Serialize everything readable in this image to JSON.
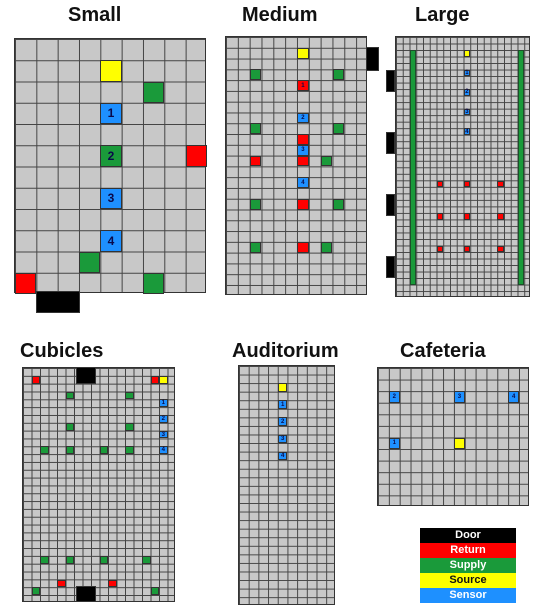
{
  "colors": {
    "door": "#000000",
    "return": "#ff0000",
    "supply": "#1a9a3a",
    "source": "#ffff00",
    "sensor": "#1e90ff"
  },
  "labels": {
    "small": "Small",
    "medium": "Medium",
    "large": "Large",
    "cubicles": "Cubicles",
    "auditorium": "Auditorium",
    "cafeteria": "Cafeteria"
  },
  "legend": [
    {
      "type": "door",
      "label": "Door"
    },
    {
      "type": "return",
      "label": "Return"
    },
    {
      "type": "supply",
      "label": "Supply"
    },
    {
      "type": "source",
      "label": "Source"
    },
    {
      "type": "sensor",
      "label": "Sensor"
    }
  ],
  "layouts": {
    "small": {
      "cols": 9,
      "rows": 12,
      "cells": [
        {
          "c": 4,
          "r": 1,
          "t": "source"
        },
        {
          "c": 6,
          "r": 2,
          "t": "supply"
        },
        {
          "c": 4,
          "r": 3,
          "t": "sensor",
          "n": "1"
        },
        {
          "c": 4,
          "r": 5,
          "t": "supply",
          "n": "2"
        },
        {
          "c": 8,
          "r": 5,
          "t": "return"
        },
        {
          "c": 4,
          "r": 7,
          "t": "sensor",
          "n": "3"
        },
        {
          "c": 4,
          "r": 9,
          "t": "sensor",
          "n": "4"
        },
        {
          "c": 3,
          "r": 10,
          "t": "supply"
        },
        {
          "c": 0,
          "r": 11,
          "t": "return"
        },
        {
          "c": 6,
          "r": 11,
          "t": "supply"
        }
      ]
    },
    "medium": {
      "cols": 12,
      "rows": 24,
      "cells": [
        {
          "c": 6,
          "r": 1,
          "t": "source"
        },
        {
          "c": 2,
          "r": 3,
          "t": "supply"
        },
        {
          "c": 9,
          "r": 3,
          "t": "supply"
        },
        {
          "c": 6,
          "r": 4,
          "t": "return",
          "n": "1"
        },
        {
          "c": 6,
          "r": 7,
          "t": "sensor",
          "n": "2"
        },
        {
          "c": 2,
          "r": 8,
          "t": "supply"
        },
        {
          "c": 9,
          "r": 8,
          "t": "supply"
        },
        {
          "c": 6,
          "r": 9,
          "t": "return"
        },
        {
          "c": 6,
          "r": 10,
          "t": "sensor",
          "n": "3"
        },
        {
          "c": 2,
          "r": 11,
          "t": "return"
        },
        {
          "c": 6,
          "r": 11,
          "t": "return"
        },
        {
          "c": 8,
          "r": 11,
          "t": "supply"
        },
        {
          "c": 6,
          "r": 13,
          "t": "sensor",
          "n": "4"
        },
        {
          "c": 2,
          "r": 15,
          "t": "supply"
        },
        {
          "c": 6,
          "r": 15,
          "t": "return"
        },
        {
          "c": 9,
          "r": 15,
          "t": "supply"
        },
        {
          "c": 2,
          "r": 19,
          "t": "supply"
        },
        {
          "c": 6,
          "r": 19,
          "t": "return"
        },
        {
          "c": 8,
          "r": 19,
          "t": "supply"
        }
      ]
    },
    "large": {
      "cols": 20,
      "rows": 40,
      "cells": [
        {
          "c": 10,
          "r": 2,
          "t": "source"
        },
        {
          "c": 10,
          "r": 5,
          "t": "sensor",
          "n": "1"
        },
        {
          "c": 10,
          "r": 8,
          "t": "sensor",
          "n": "2"
        },
        {
          "c": 10,
          "r": 11,
          "t": "sensor",
          "n": "3"
        },
        {
          "c": 10,
          "r": 14,
          "t": "sensor",
          "n": "4"
        },
        {
          "c": 6,
          "r": 22,
          "t": "return"
        },
        {
          "c": 10,
          "r": 22,
          "t": "return"
        },
        {
          "c": 15,
          "r": 22,
          "t": "return"
        },
        {
          "c": 6,
          "r": 27,
          "t": "return"
        },
        {
          "c": 10,
          "r": 27,
          "t": "return"
        },
        {
          "c": 15,
          "r": 27,
          "t": "return"
        },
        {
          "c": 6,
          "r": 32,
          "t": "return"
        },
        {
          "c": 10,
          "r": 32,
          "t": "return"
        },
        {
          "c": 15,
          "r": 32,
          "t": "return"
        }
      ],
      "stripes": [
        {
          "c": 2,
          "r0": 2,
          "r1": 37
        },
        {
          "c": 18,
          "r0": 2,
          "r1": 37
        }
      ]
    },
    "cubicles": {
      "cols": 18,
      "rows": 30,
      "cells": [
        {
          "c": 1,
          "r": 1,
          "t": "return"
        },
        {
          "c": 15,
          "r": 1,
          "t": "return"
        },
        {
          "c": 16,
          "r": 1,
          "t": "source"
        },
        {
          "c": 5,
          "r": 3,
          "t": "supply"
        },
        {
          "c": 12,
          "r": 3,
          "t": "supply"
        },
        {
          "c": 16,
          "r": 4,
          "t": "sensor",
          "n": "1"
        },
        {
          "c": 16,
          "r": 6,
          "t": "sensor",
          "n": "2"
        },
        {
          "c": 5,
          "r": 7,
          "t": "supply"
        },
        {
          "c": 12,
          "r": 7,
          "t": "supply"
        },
        {
          "c": 16,
          "r": 8,
          "t": "sensor",
          "n": "3"
        },
        {
          "c": 16,
          "r": 10,
          "t": "sensor",
          "n": "4"
        },
        {
          "c": 2,
          "r": 10,
          "t": "supply"
        },
        {
          "c": 5,
          "r": 10,
          "t": "supply"
        },
        {
          "c": 9,
          "r": 10,
          "t": "supply"
        },
        {
          "c": 12,
          "r": 10,
          "t": "supply"
        },
        {
          "c": 2,
          "r": 24,
          "t": "supply"
        },
        {
          "c": 5,
          "r": 24,
          "t": "supply"
        },
        {
          "c": 9,
          "r": 24,
          "t": "supply"
        },
        {
          "c": 14,
          "r": 24,
          "t": "supply"
        },
        {
          "c": 4,
          "r": 27,
          "t": "return"
        },
        {
          "c": 10,
          "r": 27,
          "t": "return"
        },
        {
          "c": 1,
          "r": 28,
          "t": "supply"
        },
        {
          "c": 15,
          "r": 28,
          "t": "supply"
        }
      ]
    },
    "auditorium": {
      "cols": 10,
      "rows": 28,
      "cells": [
        {
          "c": 4,
          "r": 2,
          "t": "source"
        },
        {
          "c": 4,
          "r": 4,
          "t": "sensor",
          "n": "1"
        },
        {
          "c": 4,
          "r": 6,
          "t": "sensor",
          "n": "2"
        },
        {
          "c": 4,
          "r": 8,
          "t": "sensor",
          "n": "3"
        },
        {
          "c": 4,
          "r": 10,
          "t": "sensor",
          "n": "4"
        }
      ]
    },
    "cafeteria": {
      "cols": 14,
      "rows": 12,
      "cells": [
        {
          "c": 1,
          "r": 2,
          "t": "sensor",
          "n": "2"
        },
        {
          "c": 7,
          "r": 2,
          "t": "sensor",
          "n": "3"
        },
        {
          "c": 12,
          "r": 2,
          "t": "sensor",
          "n": "4"
        },
        {
          "c": 1,
          "r": 6,
          "t": "sensor",
          "n": "1"
        },
        {
          "c": 7,
          "r": 6,
          "t": "source"
        }
      ]
    }
  }
}
